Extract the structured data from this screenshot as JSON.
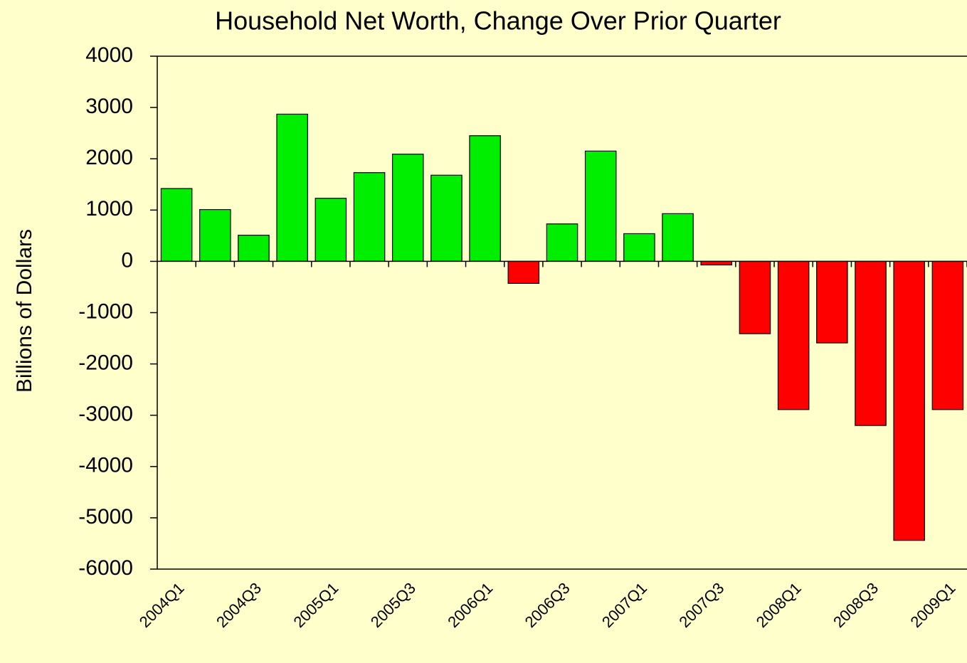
{
  "chart_data": {
    "type": "bar",
    "title": "Household Net Worth, Change Over Prior Quarter",
    "y_label": "Billions of Dollars",
    "categories": [
      "2004Q1",
      null,
      "2004Q3",
      null,
      "2005Q1",
      null,
      "2005Q3",
      null,
      "2006Q1",
      null,
      "2006Q3",
      null,
      "2007Q1",
      null,
      "2007Q3",
      null,
      "2008Q1",
      null,
      "2008Q3",
      null,
      "2009Q1"
    ],
    "values": [
      1420,
      1010,
      510,
      2870,
      1230,
      1730,
      2090,
      1680,
      2450,
      -430,
      730,
      2150,
      540,
      930,
      -70,
      -1410,
      -2890,
      -1590,
      -3200,
      -5440,
      -2890
    ],
    "positive_color": "#00ee00",
    "negative_color": "#ff0000",
    "ylim": [
      -6000,
      4000
    ],
    "yticks": [
      -6000,
      -5000,
      -4000,
      -3000,
      -2000,
      -1000,
      0,
      1000,
      2000,
      3000,
      4000
    ]
  }
}
